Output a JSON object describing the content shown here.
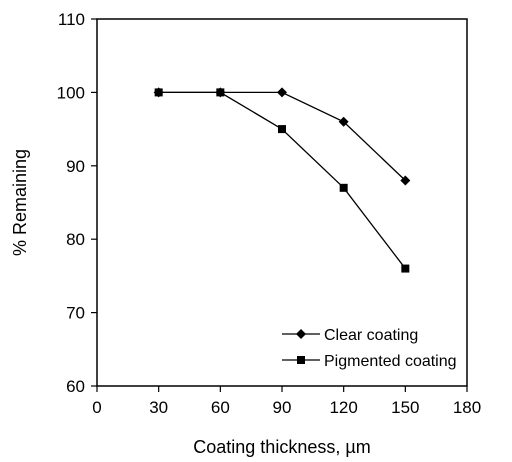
{
  "chart_data": {
    "type": "line",
    "xlabel": "Coating thickness, µm",
    "ylabel": "% Remaining",
    "xlim": [
      0,
      180
    ],
    "ylim": [
      60,
      110
    ],
    "x_ticks": [
      0,
      30,
      60,
      90,
      120,
      150,
      180
    ],
    "y_ticks": [
      60,
      70,
      80,
      90,
      100,
      110
    ],
    "grid": false,
    "legend_position": "bottom-right",
    "series": [
      {
        "name": "Clear coating",
        "marker": "diamond",
        "color": "#000000",
        "x": [
          30,
          60,
          90,
          120,
          150
        ],
        "y": [
          100,
          100,
          100,
          96,
          88
        ]
      },
      {
        "name": "Pigmented coating",
        "marker": "square",
        "color": "#000000",
        "x": [
          30,
          60,
          90,
          120,
          150
        ],
        "y": [
          100,
          100,
          95,
          87,
          76
        ]
      }
    ]
  }
}
